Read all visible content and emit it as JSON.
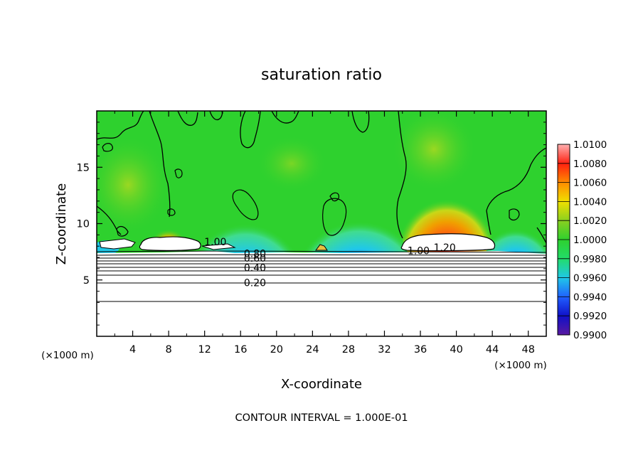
{
  "chart_data": {
    "type": "heatmap",
    "title": "saturation ratio",
    "xlabel": "X-coordinate",
    "ylabel": "Z-coordinate",
    "x_unit_left": "(×1000 m)",
    "x_unit_right": "(×1000 m)",
    "xlim": [
      0,
      50
    ],
    "ylim": [
      0,
      20
    ],
    "x_ticks": [
      4,
      8,
      12,
      16,
      20,
      24,
      28,
      32,
      36,
      40,
      44,
      48
    ],
    "x_tick_labels": [
      "4",
      "8",
      "12",
      "16",
      "20",
      "24",
      "28",
      "32",
      "36",
      "40",
      "44",
      "48"
    ],
    "y_ticks": [
      5,
      10,
      15
    ],
    "y_tick_labels": [
      "5",
      "10",
      "15"
    ],
    "grid": false,
    "colorbar": {
      "levels": [
        0.99,
        0.992,
        0.994,
        0.996,
        0.998,
        1.0,
        1.002,
        1.004,
        1.006,
        1.008,
        1.01
      ],
      "labels": [
        "0.9900",
        "0.9920",
        "0.9940",
        "0.9960",
        "0.9980",
        "1.0000",
        "1.0020",
        "1.0040",
        "1.0060",
        "1.0080",
        "1.0100"
      ],
      "colors": [
        "#5a1aa0",
        "#1010c8",
        "#2060ff",
        "#20c8e8",
        "#22dc6a",
        "#2ed12e",
        "#8ad020",
        "#f0e000",
        "#ff8c00",
        "#ff2010",
        "#ffb0b0"
      ]
    },
    "contour_labels": [
      {
        "text": "1.00",
        "x": 13.2,
        "z": 8.4
      },
      {
        "text": "0.80",
        "x": 17.6,
        "z": 7.35
      },
      {
        "text": "0.60",
        "x": 17.6,
        "z": 6.95
      },
      {
        "text": "0.40",
        "x": 17.6,
        "z": 6.1
      },
      {
        "text": "0.20",
        "x": 17.6,
        "z": 4.75
      },
      {
        "text": "1.00",
        "x": 35.8,
        "z": 7.6
      },
      {
        "text": "1.20",
        "x": 38.7,
        "z": 7.9
      }
    ],
    "footer": "CONTOUR INTERVAL = 1.000E-01"
  }
}
